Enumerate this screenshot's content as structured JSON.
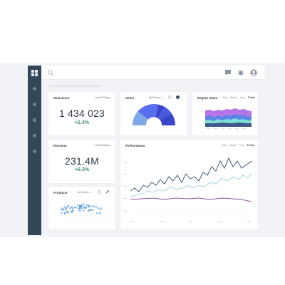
{
  "colors": {
    "sidebar": "#34475a",
    "background": "#f1f3f6",
    "positive": "#3d8a71",
    "donut_dark": "#3b47c9",
    "donut_mid": "#5a6cf0",
    "donut_light": "#7fa8e6",
    "line_navy": "#2f4a6b",
    "line_teal": "#8fd3df",
    "line_purple": "#8a5a9e",
    "area_purple": "#b476e6",
    "area_blue": "#5a86e8",
    "area_teal": "#7fe0d8",
    "scatter": "#5b9fe0"
  },
  "topbar": {
    "search_icon": "search-icon",
    "icons": [
      "chat-icon",
      "bug-icon",
      "user-avatar-icon"
    ]
  },
  "sidebar": {
    "items": [
      "nav-item-1",
      "nav-item-2",
      "nav-item-3",
      "nav-item-4",
      "nav-item-5",
      "nav-item-6"
    ]
  },
  "new_users": {
    "title": "New users",
    "dropdown": "Last 28 Days",
    "value": "1 434 023",
    "delta": "+2.3%"
  },
  "users": {
    "title": "Users",
    "dropdown": "By Source"
  },
  "region_share": {
    "title": "Region share",
    "tabs": [
      "Day",
      "Month",
      "Year",
      "5 Year"
    ],
    "active_tab": "5 Year"
  },
  "revenue": {
    "title": "Revenue",
    "dropdown": "Last 28 Days",
    "value": "231.4M",
    "delta": "+6.3%"
  },
  "products": {
    "title": "Products",
    "dropdown": "By Source"
  },
  "performance": {
    "title": "Performance",
    "tabs": [
      "Day",
      "Month",
      "Year",
      "5 Year"
    ],
    "active_tab": "5 Year"
  }
}
